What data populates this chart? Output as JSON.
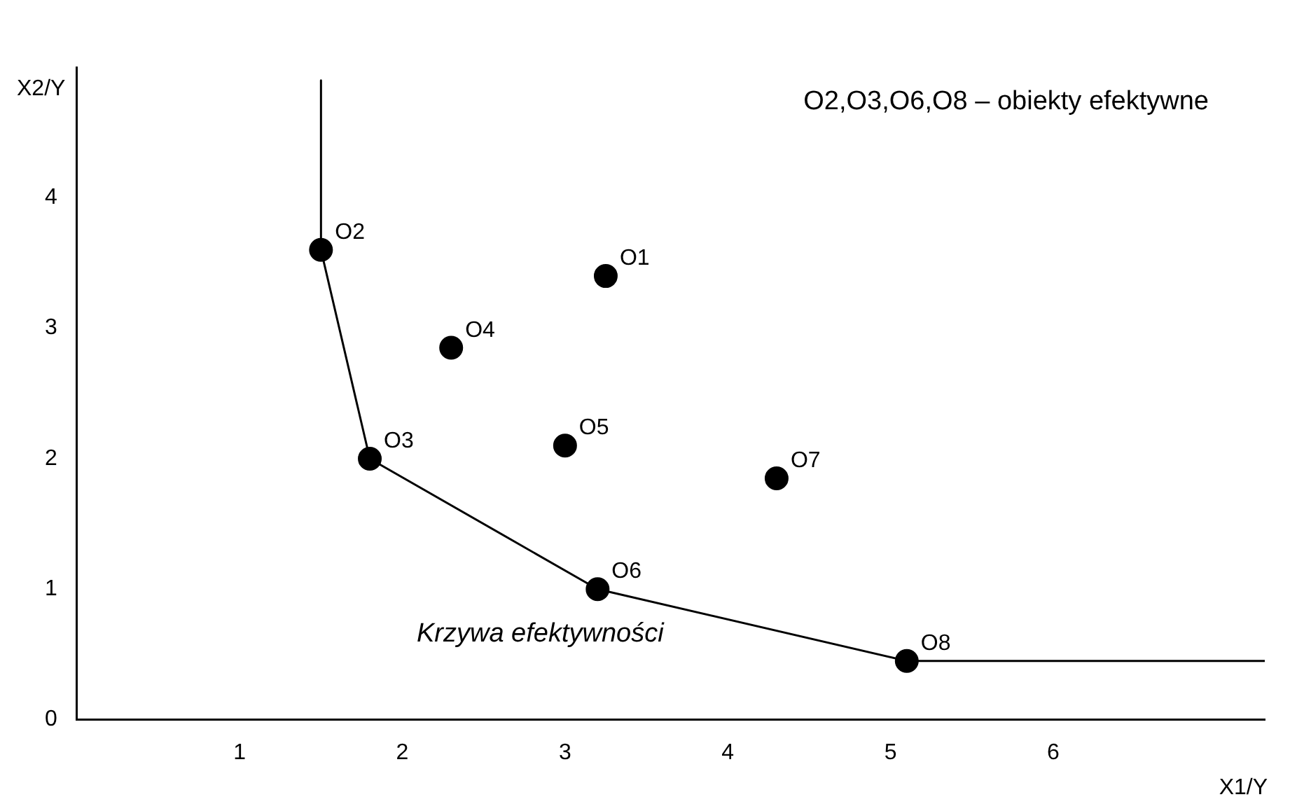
{
  "chart_data": {
    "type": "scatter",
    "xlabel": "X1/Y",
    "ylabel": "X2/Y",
    "xlim": [
      0,
      7.3
    ],
    "ylim": [
      0,
      5
    ],
    "xticks": [
      1,
      2,
      3,
      4,
      5,
      6
    ],
    "yticks": [
      0,
      1,
      2,
      3,
      4
    ],
    "grid": false,
    "legend": false,
    "marker": "circle",
    "annotations": [
      "O2,O3,O6,O8 – obiekty efektywne",
      "Krzywa efektywności"
    ],
    "series": [
      {
        "type": "line",
        "color": "#000000",
        "x": [
          1.5,
          1.5,
          1.8,
          3.2,
          5.1,
          7.3
        ],
        "values": [
          4.9,
          3.6,
          2,
          1,
          0.45,
          0.45
        ],
        "marker": "none"
      },
      {
        "name": "O1",
        "color": "#000000",
        "x": [
          3.25
        ],
        "values": [
          3.4
        ]
      },
      {
        "name": "O2",
        "color": "#000000",
        "x": [
          1.5
        ],
        "values": [
          3.6
        ]
      },
      {
        "name": "O3",
        "color": "#000000",
        "x": [
          1.8
        ],
        "values": [
          2
        ]
      },
      {
        "name": "O4",
        "color": "#000000",
        "x": [
          2.3
        ],
        "values": [
          2.85
        ]
      },
      {
        "name": "O5",
        "color": "#000000",
        "x": [
          3
        ],
        "values": [
          2.1
        ]
      },
      {
        "name": "O6",
        "color": "#000000",
        "x": [
          3.2
        ],
        "values": [
          1
        ]
      },
      {
        "name": "O7",
        "color": "#000000",
        "x": [
          4.3
        ],
        "values": [
          1.85
        ]
      },
      {
        "name": "O8",
        "color": "#000000",
        "x": [
          5.1
        ],
        "values": [
          0.45
        ]
      }
    ]
  }
}
